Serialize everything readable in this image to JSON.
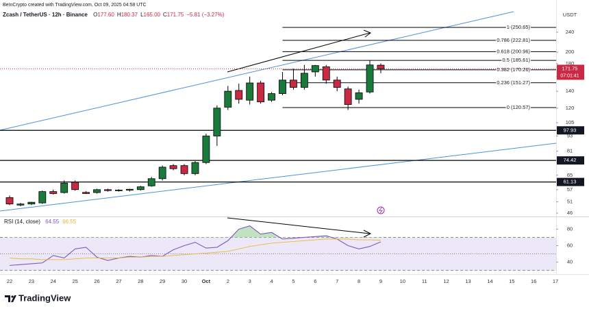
{
  "header": {
    "credit": "BeInCrypto created with TradingView.com, Oct 09, 2025 04:58 UTC",
    "symbol": "Zcash / TetherUS · 12h · Binance",
    "ohlc": [
      {
        "key": "O",
        "value": "177.60"
      },
      {
        "key": "H",
        "value": "180.37"
      },
      {
        "key": "L",
        "value": "165.00"
      },
      {
        "key": "C",
        "value": "171.75"
      }
    ],
    "change": "−5.81 (−3.27%)"
  },
  "logo": "TradingView",
  "chart_data": [
    {
      "type": "candlestick",
      "axis_unit": "USDT",
      "log_scale": true,
      "up_color": "#1a7a3c",
      "down_color": "#c92a43",
      "ylim": [
        44.6,
        322
      ],
      "yticks": [
        46,
        51,
        57,
        65,
        81,
        93,
        105,
        120,
        140,
        160,
        180,
        200,
        240
      ],
      "x_labels": [
        "22",
        "23",
        "24",
        "25",
        "26",
        "27",
        "28",
        "29",
        "30",
        "Oct",
        "2",
        "3",
        "4",
        "5",
        "6",
        "7",
        "8",
        "9",
        "10",
        "11",
        "12",
        "13",
        "14",
        "15",
        "16",
        "17"
      ],
      "open": [
        53,
        49.5,
        50,
        50.5,
        56,
        55.5,
        61,
        55.6,
        55.5,
        57,
        56.5,
        56.7,
        57,
        59,
        63,
        71,
        71,
        66,
        73,
        93,
        121,
        141,
        129,
        151,
        129,
        137,
        155,
        145,
        167,
        175,
        155,
        143,
        130,
        139,
        177.6
      ],
      "high": [
        54,
        50.5,
        51,
        56.5,
        57,
        62,
        62,
        56.2,
        57.5,
        57.5,
        57.2,
        57.5,
        59,
        64,
        71,
        72,
        72,
        74,
        95,
        123,
        147,
        150,
        160,
        154,
        139,
        167,
        172,
        178,
        178,
        178,
        160,
        146,
        142,
        186,
        180.37
      ],
      "low": [
        49.5,
        49,
        49.5,
        50,
        54.5,
        55,
        56.5,
        54.8,
        55,
        56,
        56,
        56,
        56.5,
        58.5,
        62,
        68,
        65,
        65,
        72,
        85,
        118,
        125,
        124,
        125,
        127,
        135,
        142,
        142,
        160,
        150,
        140,
        118,
        125,
        137,
        165
      ],
      "close": [
        50,
        50,
        50.8,
        56,
        55,
        60.5,
        57,
        55,
        57,
        56.5,
        56.8,
        57.2,
        58.5,
        63,
        70,
        69,
        66,
        73,
        93,
        120,
        140,
        130,
        151,
        127,
        137,
        155,
        145,
        165,
        177,
        155,
        145,
        124,
        138,
        178,
        171.75
      ],
      "last_price": {
        "value": 171.75,
        "label": "171.75"
      },
      "countdown": "07:01:41",
      "levels": [
        97.93,
        74.42,
        61.13
      ],
      "fib": [
        {
          "value": 250.65,
          "label": "1 (250.65)"
        },
        {
          "value": 222.81,
          "label": "0.786 (222.81)"
        },
        {
          "value": 200.96,
          "label": "0.618 (200.96)"
        },
        {
          "value": 185.61,
          "label": "0.5 (185.61)"
        },
        {
          "value": 170.26,
          "label": "0.382 (170.26)"
        },
        {
          "value": 151.27,
          "label": "0.236 (151.27)"
        },
        {
          "value": 120.57,
          "label": "0 (120.57)"
        }
      ]
    },
    {
      "type": "line",
      "title": "RSI (14, close)",
      "ylim": [
        28,
        92
      ],
      "yticks": [
        40,
        60,
        80
      ],
      "bands": [
        70,
        50,
        30
      ],
      "series": [
        {
          "color": "#7e57c2",
          "values": [
            36,
            37,
            38,
            39,
            48,
            45,
            56,
            58,
            46,
            42,
            45,
            47,
            46,
            48,
            47,
            55,
            60,
            64,
            57,
            58,
            66,
            80,
            84,
            74,
            76,
            68,
            69,
            70,
            71,
            72,
            68,
            60,
            56,
            59,
            64.55
          ]
        },
        {
          "color": "#e8b93a",
          "values": [
            45,
            44,
            44,
            43,
            43,
            43,
            44,
            45,
            45,
            45,
            45,
            46,
            46,
            47,
            47,
            48,
            49,
            50,
            51,
            52,
            53,
            56,
            59,
            61,
            63,
            64,
            65,
            66,
            67,
            68,
            68,
            68,
            67,
            67,
            66.55
          ]
        }
      ]
    }
  ]
}
